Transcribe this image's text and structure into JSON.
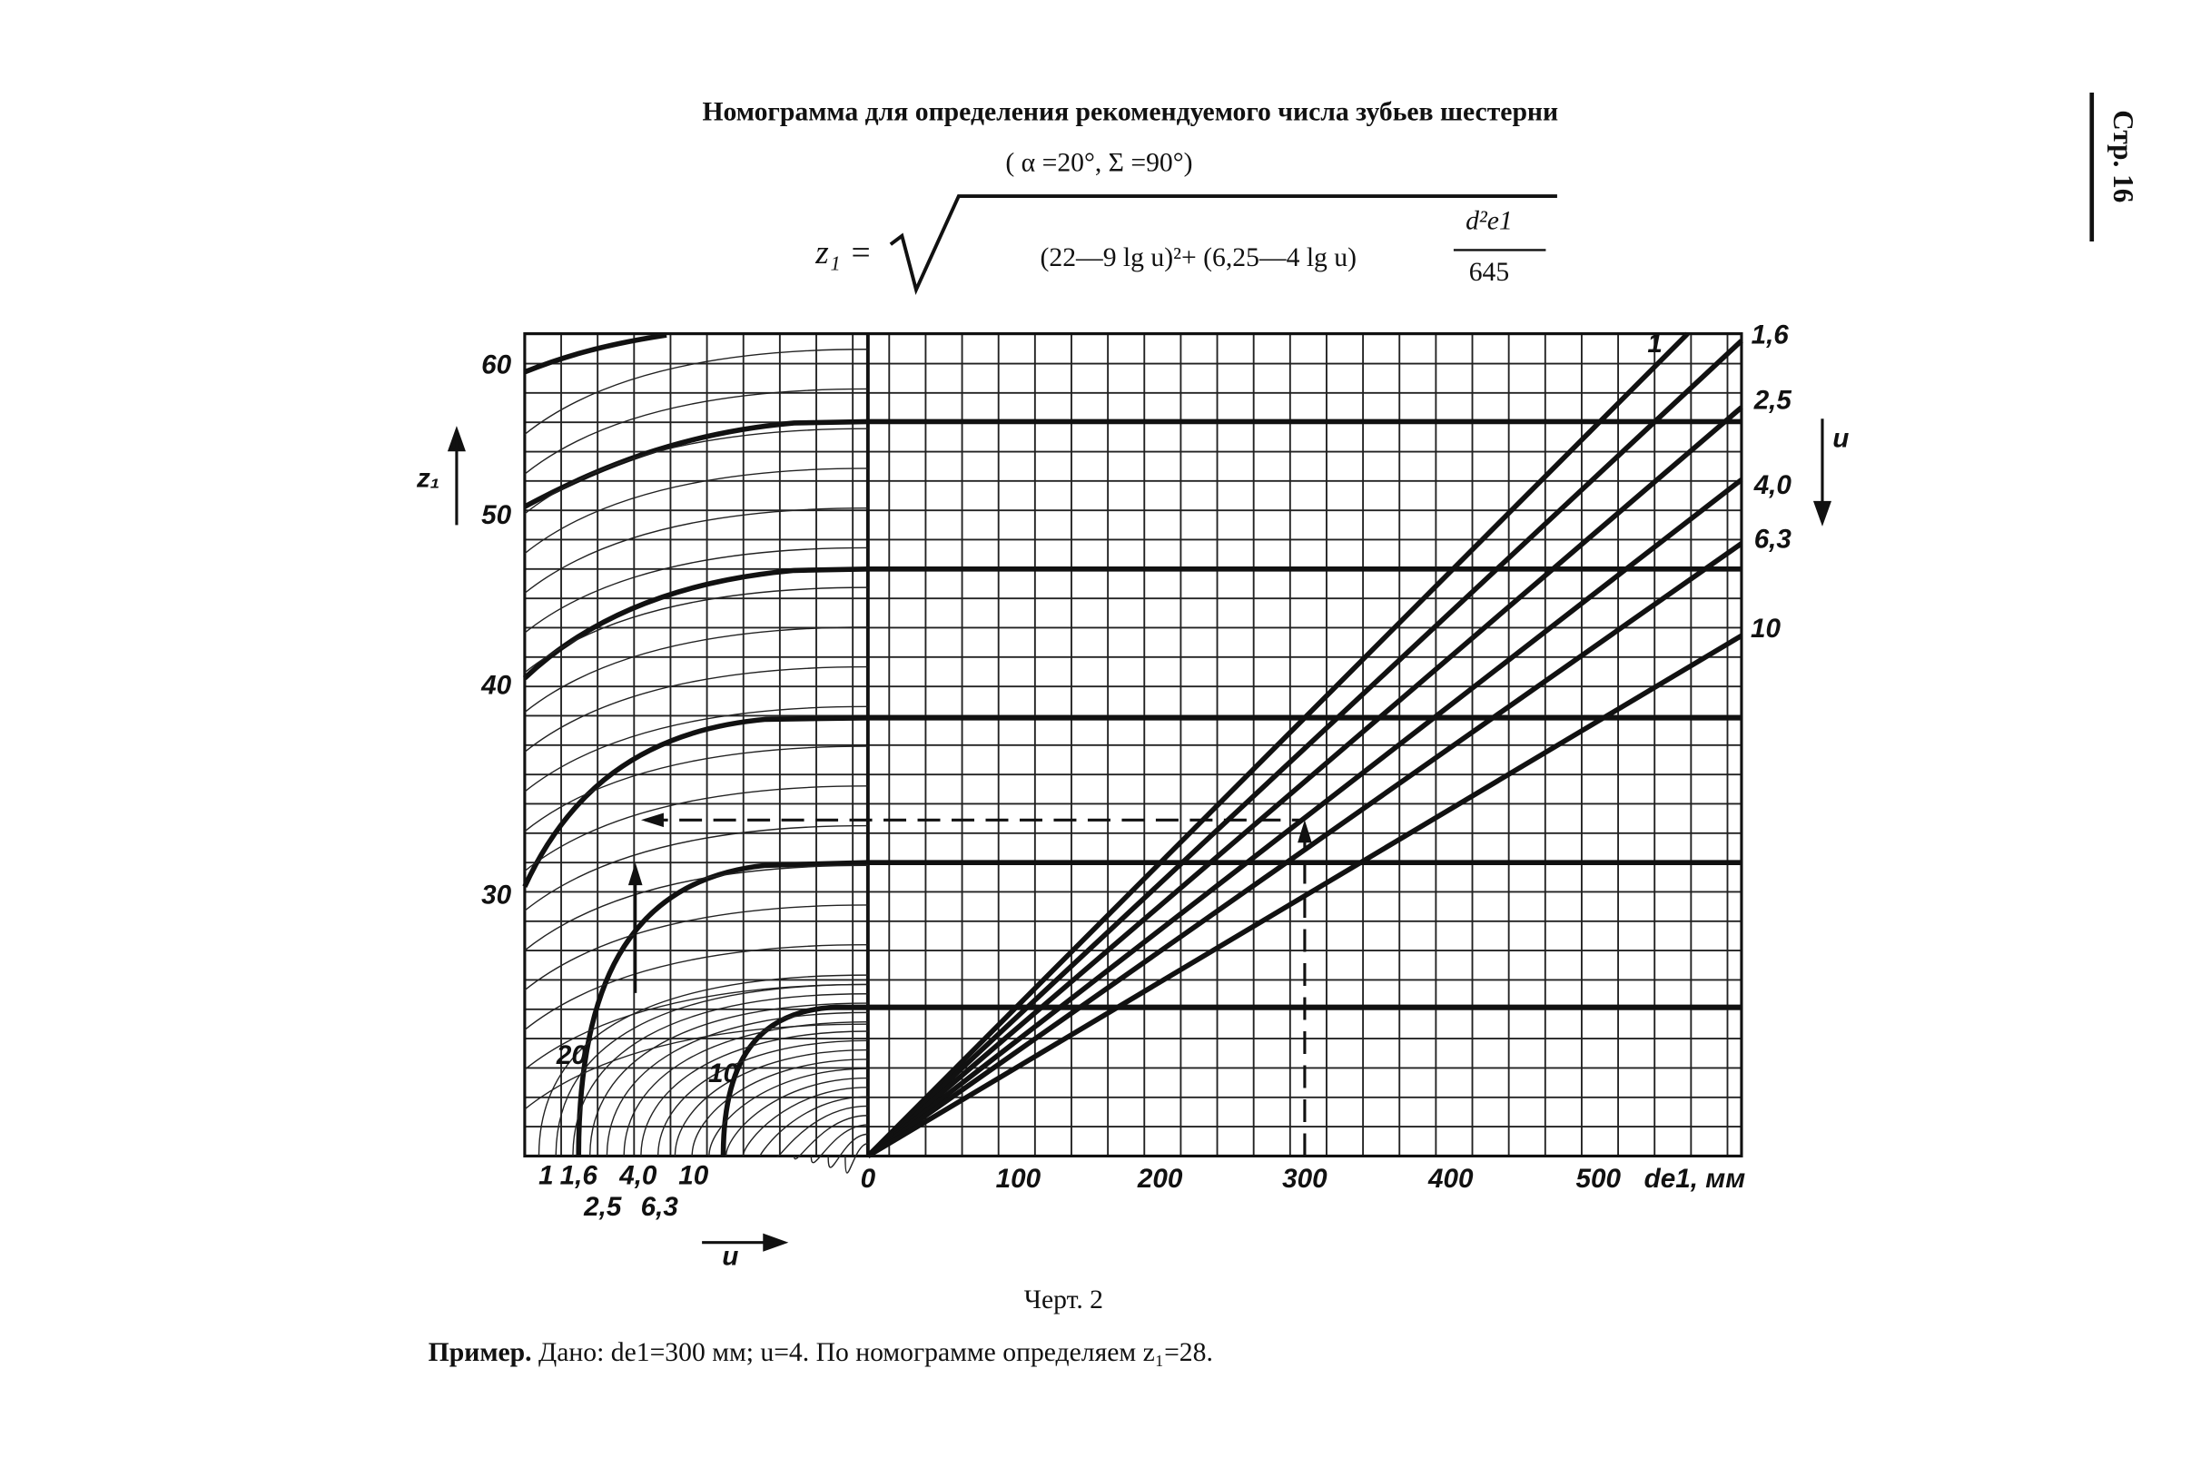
{
  "header": {
    "title": "Номограмма для определения рекомендуемого числа зубьев шестерни",
    "subtitle": "( α =20°, Σ =90°)",
    "page": "Стр. 16"
  },
  "formula": {
    "lhs": "z₁ =",
    "radicand": "(22—9 lg u)²+ (6,25—4 lg u)",
    "numerator": "d²e1",
    "denominator": "645"
  },
  "nomogram": {
    "z_label": "z₁",
    "z_ticks": [
      "60",
      "50",
      "40",
      "30"
    ],
    "u_right_label": "u",
    "u_right": [
      "1",
      "1,6",
      "2,5",
      "4,0",
      "6,3",
      "10"
    ],
    "u_bottom": [
      "1",
      "1,6",
      "2,5",
      "4,0",
      "6,3",
      "10"
    ],
    "u_bottom_label": "u",
    "d_ticks": [
      "0",
      "100",
      "200",
      "300",
      "400",
      "500"
    ],
    "d_label": "de1, мм",
    "curve_labels": [
      "20",
      "10"
    ]
  },
  "caption": "Черт. 2",
  "example": {
    "label": "Пример.",
    "text": " Дано: dе1=300 мм; u=4. По номограмме определяем z₁=28."
  }
}
